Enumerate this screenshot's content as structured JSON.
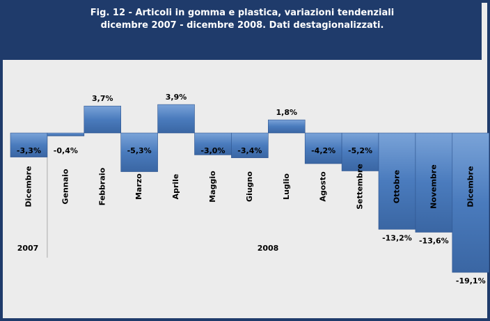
{
  "chart_data": {
    "type": "bar",
    "title": "Fig. 12 - Articoli in gomma e plastica, variazioni tendenziali  dicembre 2007 - dicembre 2008. Dati destagionalizzati.",
    "categories": [
      "Dicembre",
      "Gennaio",
      "Febbraio",
      "Marzo",
      "Aprile",
      "Maggio",
      "Giugno",
      "Luglio",
      "Agosto",
      "Settembre",
      "Ottobre",
      "Novembre",
      "Dicembre"
    ],
    "values": [
      -3.3,
      -0.4,
      3.7,
      -5.3,
      3.9,
      -3.0,
      -3.4,
      1.8,
      -4.2,
      -5.2,
      -13.2,
      -13.6,
      -19.1
    ],
    "value_labels": [
      "-3,3%",
      "-0,4%",
      "3,7%",
      "-5,3%",
      "3,9%",
      "-3,0%",
      "-3,4%",
      "1,8%",
      "-4,2%",
      "-5,2%",
      "-13,2%",
      "-13,6%",
      "-19,1%"
    ],
    "annotations": [
      "2007",
      "2008"
    ],
    "color": "#4a7bbd"
  }
}
